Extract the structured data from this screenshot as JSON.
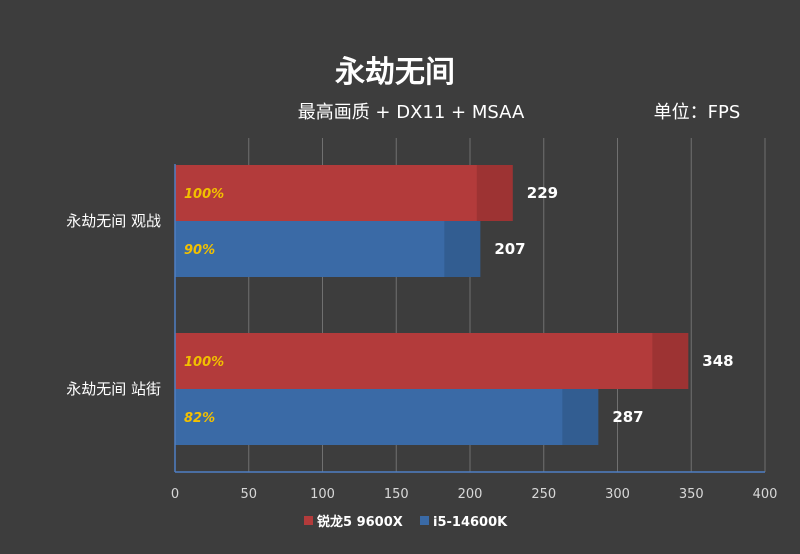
{
  "chart_data": {
    "type": "bar",
    "orientation": "horizontal",
    "title": "永劫无间",
    "subtitle": "最高画质 + DX11 + MSAA",
    "unit_label": "单位：FPS",
    "categories": [
      "永劫无间 观战",
      "永劫无间 站街"
    ],
    "series": [
      {
        "name": "锐龙5 9600X",
        "color": "#b33b3b",
        "values": [
          229,
          348
        ],
        "percent_labels": [
          "100%",
          "100%"
        ]
      },
      {
        "name": "i5-14600K",
        "color": "#3a6aa6",
        "values": [
          207,
          287
        ],
        "percent_labels": [
          "90%",
          "82%"
        ]
      }
    ],
    "xlim": [
      0,
      400
    ],
    "xticks": [
      0,
      50,
      100,
      150,
      200,
      250,
      300,
      350,
      400
    ],
    "grid": true,
    "legend_position": "bottom"
  }
}
